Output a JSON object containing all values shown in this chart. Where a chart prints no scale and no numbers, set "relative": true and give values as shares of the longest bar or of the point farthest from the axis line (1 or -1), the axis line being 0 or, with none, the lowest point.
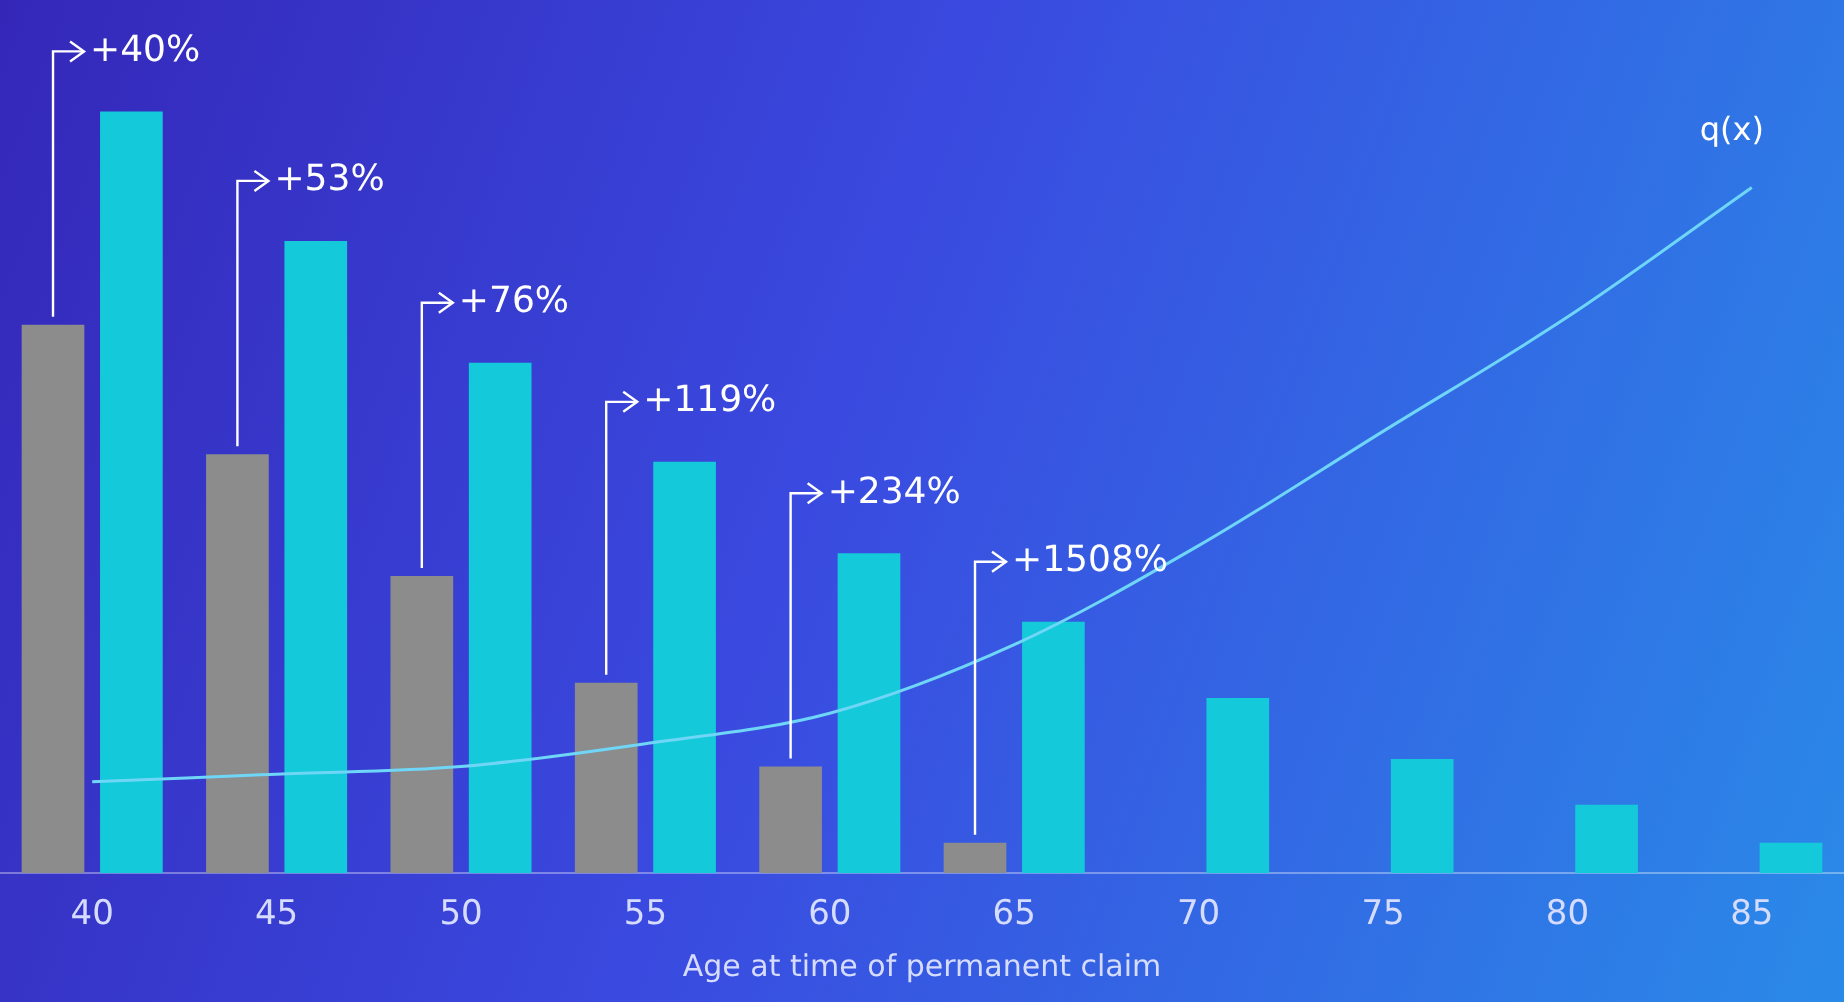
{
  "chart_data": {
    "type": "bar",
    "relative": true,
    "xlabel": "Age at time of permanent claim",
    "categories": [
      "40",
      "45",
      "50",
      "55",
      "60",
      "65",
      "70",
      "75",
      "80",
      "85"
    ],
    "legend": false,
    "grid": false,
    "series": [
      {
        "color": "#8c8c8c",
        "values": [
          0.72,
          0.55,
          0.39,
          0.25,
          0.14,
          0.04,
          null,
          null,
          null,
          null
        ]
      },
      {
        "color": "#14c9d9",
        "values": [
          1,
          0.83,
          0.67,
          0.54,
          0.42,
          0.33,
          0.23,
          0.15,
          0.09,
          0.04
        ]
      },
      {
        "type": "line",
        "name": "q(x)",
        "color": "#6fd6f7",
        "values": [
          0.12,
          0.13,
          0.14,
          0.17,
          0.21,
          0.3,
          0.43,
          0.58,
          0.73,
          0.9
        ]
      }
    ],
    "annotations": [
      {
        "text": "+40%",
        "x": "40",
        "y": 1
      },
      {
        "text": "+53%",
        "x": "45",
        "y": 0.83
      },
      {
        "text": "+76%",
        "x": "50",
        "y": 0.67
      },
      {
        "text": "+119%",
        "x": "55",
        "y": 0.54
      },
      {
        "text": "+234%",
        "x": "60",
        "y": 0.42
      },
      {
        "text": "+1508%",
        "x": "65",
        "y": 0.33
      }
    ]
  }
}
